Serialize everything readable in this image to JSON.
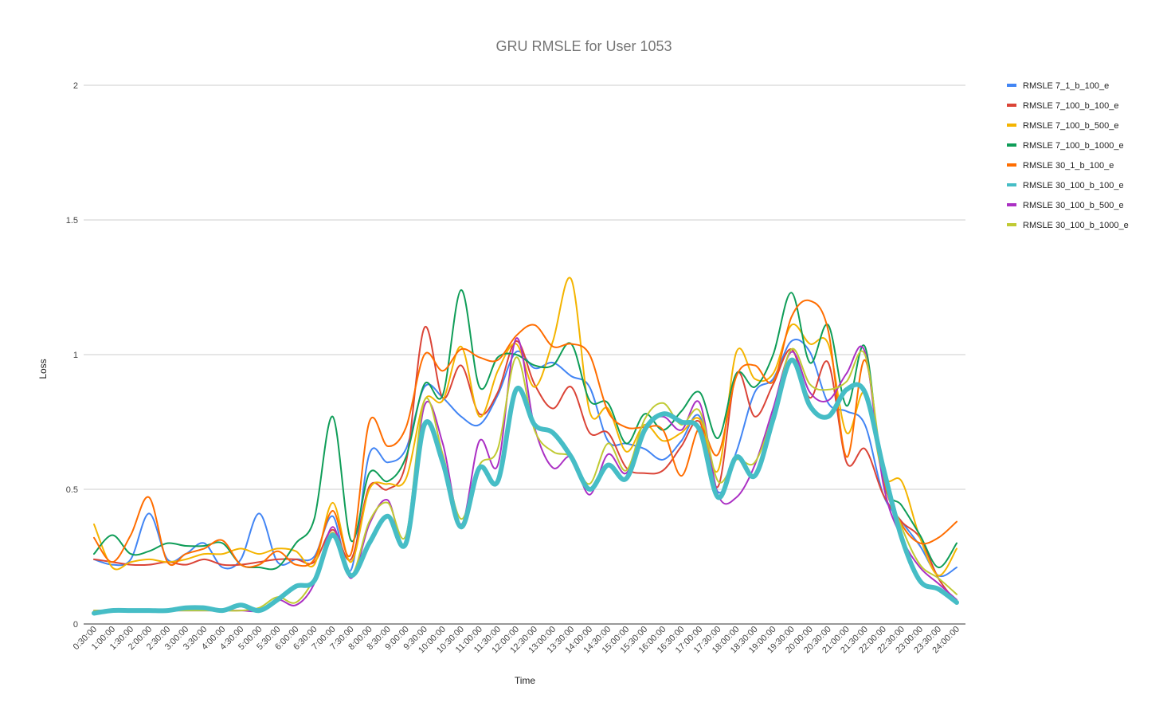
{
  "chart_data": {
    "type": "line",
    "title": "GRU RMSLE for User 1053",
    "xlabel": "Time",
    "ylabel": "Loss",
    "ylim": [
      0,
      2
    ],
    "yticks": [
      "0",
      "0.5",
      "1",
      "1.5",
      "2"
    ],
    "grid": true,
    "legend_position": "right",
    "categories": [
      "0:30:00",
      "1:00:00",
      "1:30:00",
      "2:00:00",
      "2:30:00",
      "3:00:00",
      "3:30:00",
      "4:00:00",
      "4:30:00",
      "5:00:00",
      "5:30:00",
      "6:00:00",
      "6:30:00",
      "7:00:00",
      "7:30:00",
      "8:00:00",
      "8:30:00",
      "9:00:00",
      "9:30:00",
      "10:00:00",
      "10:30:00",
      "11:00:00",
      "11:30:00",
      "12:00:00",
      "12:30:00",
      "13:00:00",
      "13:30:00",
      "14:00:00",
      "14:30:00",
      "15:00:00",
      "15:30:00",
      "16:00:00",
      "16:30:00",
      "17:00:00",
      "17:30:00",
      "18:00:00",
      "18:30:00",
      "19:00:00",
      "19:30:00",
      "20:00:00",
      "20:30:00",
      "21:00:00",
      "21:30:00",
      "22:00:00",
      "22:30:00",
      "23:00:00",
      "23:30:00",
      "24:00:00"
    ],
    "series": [
      {
        "name": "RMSLE 7_1_b_100_e",
        "color": "#4285f4",
        "width": 2,
        "values": [
          0.24,
          0.22,
          0.24,
          0.41,
          0.24,
          0.26,
          0.3,
          0.21,
          0.24,
          0.41,
          0.23,
          0.24,
          0.25,
          0.4,
          0.2,
          0.63,
          0.6,
          0.65,
          0.88,
          0.84,
          0.77,
          0.74,
          0.85,
          1.01,
          0.95,
          0.97,
          0.92,
          0.88,
          0.68,
          0.67,
          0.65,
          0.61,
          0.68,
          0.77,
          0.49,
          0.64,
          0.86,
          0.91,
          1.05,
          1.01,
          0.82,
          0.79,
          0.74,
          0.48,
          0.38,
          0.29,
          0.18,
          0.21
        ]
      },
      {
        "name": "RMSLE 7_100_b_100_e",
        "color": "#db4437",
        "width": 2,
        "values": [
          0.24,
          0.23,
          0.22,
          0.22,
          0.23,
          0.22,
          0.24,
          0.22,
          0.22,
          0.23,
          0.24,
          0.24,
          0.23,
          0.35,
          0.24,
          0.51,
          0.5,
          0.6,
          1.1,
          0.84,
          0.96,
          0.78,
          0.86,
          1.05,
          0.89,
          0.8,
          0.88,
          0.71,
          0.71,
          0.58,
          0.56,
          0.57,
          0.66,
          0.75,
          0.51,
          0.93,
          0.77,
          0.89,
          1.02,
          0.84,
          0.97,
          0.6,
          0.65,
          0.48,
          0.38,
          0.32,
          0.17,
          0.08
        ]
      },
      {
        "name": "RMSLE 7_100_b_500_e",
        "color": "#f4b400",
        "width": 2,
        "values": [
          0.37,
          0.21,
          0.23,
          0.24,
          0.23,
          0.24,
          0.26,
          0.26,
          0.28,
          0.26,
          0.28,
          0.27,
          0.22,
          0.45,
          0.23,
          0.5,
          0.52,
          0.54,
          0.83,
          0.83,
          1.03,
          0.77,
          0.94,
          1.04,
          0.88,
          1.05,
          1.28,
          0.79,
          0.8,
          0.64,
          0.74,
          0.68,
          0.71,
          0.76,
          0.57,
          1.01,
          0.91,
          0.93,
          1.11,
          1.04,
          1.04,
          0.71,
          0.86,
          0.55,
          0.53,
          0.32,
          0.18,
          0.28
        ]
      },
      {
        "name": "RMSLE 7_100_b_1000_e",
        "color": "#0f9d58",
        "width": 2,
        "values": [
          0.26,
          0.33,
          0.26,
          0.27,
          0.3,
          0.29,
          0.29,
          0.3,
          0.22,
          0.21,
          0.21,
          0.3,
          0.39,
          0.77,
          0.31,
          0.56,
          0.53,
          0.62,
          0.89,
          0.85,
          1.24,
          0.88,
          0.99,
          1.0,
          0.96,
          0.96,
          1.04,
          0.83,
          0.82,
          0.67,
          0.78,
          0.72,
          0.79,
          0.86,
          0.69,
          0.93,
          0.88,
          1.0,
          1.23,
          0.97,
          1.11,
          0.81,
          1.03,
          0.53,
          0.44,
          0.33,
          0.21,
          0.3
        ]
      },
      {
        "name": "RMSLE 30_1_b_100_e",
        "color": "#ff6d00",
        "width": 2,
        "values": [
          0.32,
          0.23,
          0.33,
          0.47,
          0.23,
          0.26,
          0.28,
          0.31,
          0.22,
          0.22,
          0.27,
          0.22,
          0.24,
          0.42,
          0.26,
          0.75,
          0.66,
          0.73,
          1.0,
          0.94,
          1.02,
          0.99,
          0.98,
          1.07,
          1.11,
          1.03,
          1.04,
          1.0,
          0.79,
          0.73,
          0.73,
          0.72,
          0.55,
          0.73,
          0.63,
          0.92,
          0.96,
          0.9,
          1.14,
          1.2,
          1.09,
          0.62,
          0.98,
          0.54,
          0.37,
          0.3,
          0.32,
          0.38
        ]
      },
      {
        "name": "RMSLE 30_100_b_100_e",
        "color": "#46bdc6",
        "width": 6,
        "values": [
          0.04,
          0.05,
          0.05,
          0.05,
          0.05,
          0.06,
          0.06,
          0.05,
          0.07,
          0.05,
          0.09,
          0.14,
          0.16,
          0.33,
          0.18,
          0.3,
          0.4,
          0.3,
          0.74,
          0.6,
          0.36,
          0.58,
          0.53,
          0.87,
          0.74,
          0.71,
          0.62,
          0.5,
          0.59,
          0.54,
          0.72,
          0.78,
          0.75,
          0.72,
          0.47,
          0.62,
          0.55,
          0.76,
          0.98,
          0.81,
          0.77,
          0.87,
          0.86,
          0.58,
          0.32,
          0.16,
          0.13,
          0.08
        ]
      },
      {
        "name": "RMSLE 30_100_b_500_e",
        "color": "#ab30c4",
        "width": 2,
        "values": [
          0.05,
          0.05,
          0.05,
          0.05,
          0.05,
          0.05,
          0.05,
          0.05,
          0.05,
          0.05,
          0.09,
          0.07,
          0.15,
          0.36,
          0.17,
          0.37,
          0.46,
          0.3,
          0.81,
          0.67,
          0.37,
          0.68,
          0.59,
          1.06,
          0.73,
          0.58,
          0.62,
          0.48,
          0.63,
          0.56,
          0.73,
          0.77,
          0.72,
          0.82,
          0.48,
          0.47,
          0.59,
          0.8,
          1.01,
          0.86,
          0.83,
          0.93,
          1.01,
          0.52,
          0.32,
          0.21,
          0.15,
          0.09
        ]
      },
      {
        "name": "RMSLE 30_100_b_1000_e",
        "color": "#c0ca33",
        "width": 2,
        "values": [
          0.05,
          0.05,
          0.05,
          0.05,
          0.05,
          0.05,
          0.05,
          0.05,
          0.05,
          0.06,
          0.1,
          0.08,
          0.17,
          0.34,
          0.18,
          0.38,
          0.45,
          0.33,
          0.83,
          0.63,
          0.39,
          0.59,
          0.65,
          0.99,
          0.72,
          0.64,
          0.62,
          0.52,
          0.67,
          0.57,
          0.76,
          0.82,
          0.74,
          0.79,
          0.53,
          0.61,
          0.6,
          0.78,
          1.02,
          0.89,
          0.87,
          0.9,
          1.0,
          0.57,
          0.36,
          0.22,
          0.17,
          0.11
        ]
      }
    ]
  }
}
